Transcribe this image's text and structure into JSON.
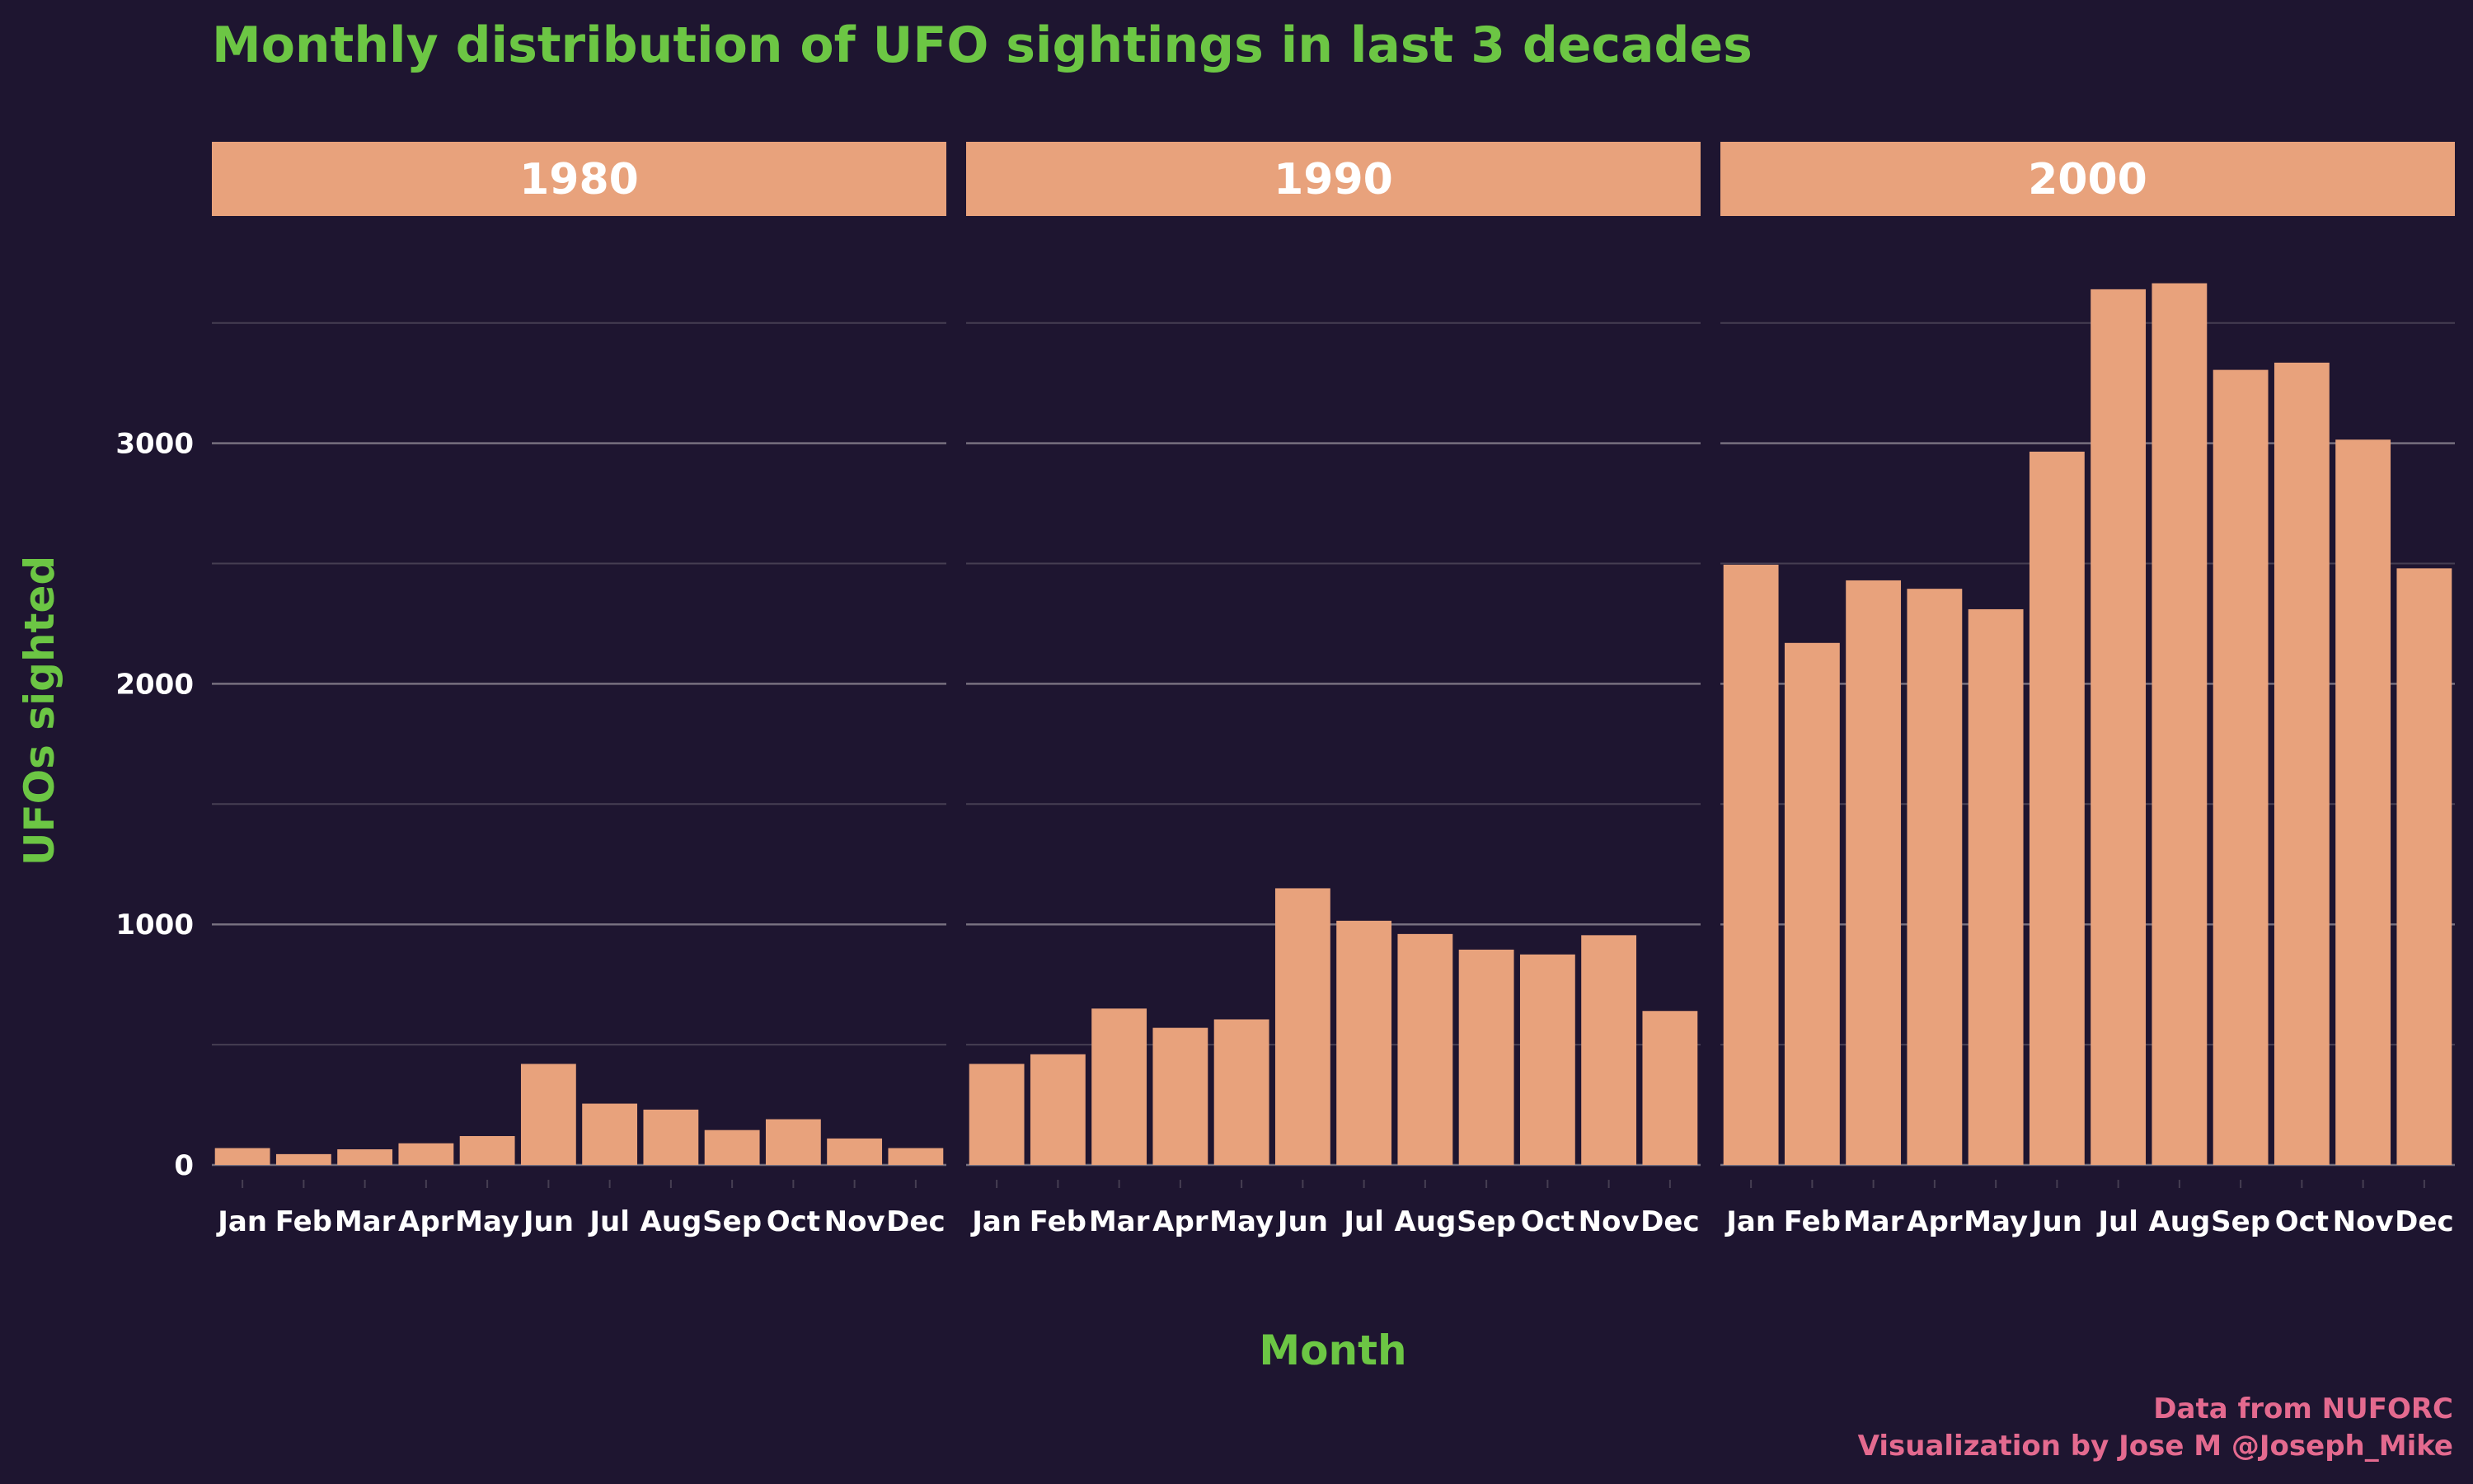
{
  "colors": {
    "background": "#1e1530",
    "bar": "#e8a27c",
    "strip": "#e8a27c",
    "strip_text": "#ffffff",
    "title": "#6cc644",
    "axis_title": "#6cc644",
    "tick_text": "#ffffff",
    "grid_major": "#77707f",
    "grid_minor": "#463e52",
    "caption": "#e46a8f"
  },
  "chart_data": {
    "type": "bar",
    "title": "Monthly distribution of UFO sightings in last 3 decades",
    "xlabel": "Month",
    "ylabel": "UFOs sighted",
    "ylim": [
      0,
      3900
    ],
    "yticks": [
      "0",
      "1000",
      "2000",
      "3000"
    ],
    "grid": true,
    "categories": [
      "Jan",
      "Feb",
      "Mar",
      "Apr",
      "May",
      "Jun",
      "Jul",
      "Aug",
      "Sep",
      "Oct",
      "Nov",
      "Dec"
    ],
    "panels": [
      {
        "label": "1980",
        "values": [
          70,
          45,
          65,
          90,
          120,
          420,
          255,
          230,
          145,
          190,
          110,
          70
        ]
      },
      {
        "label": "1990",
        "values": [
          420,
          460,
          650,
          570,
          605,
          1150,
          1015,
          960,
          895,
          875,
          955,
          640
        ]
      },
      {
        "label": "2000",
        "values": [
          2495,
          2170,
          2430,
          2395,
          2310,
          2965,
          3640,
          3665,
          3305,
          3335,
          3015,
          2480
        ]
      }
    ],
    "caption_lines": [
      "Data from NUFORC",
      "Visualization by Jose M @Joseph_Mike"
    ]
  }
}
